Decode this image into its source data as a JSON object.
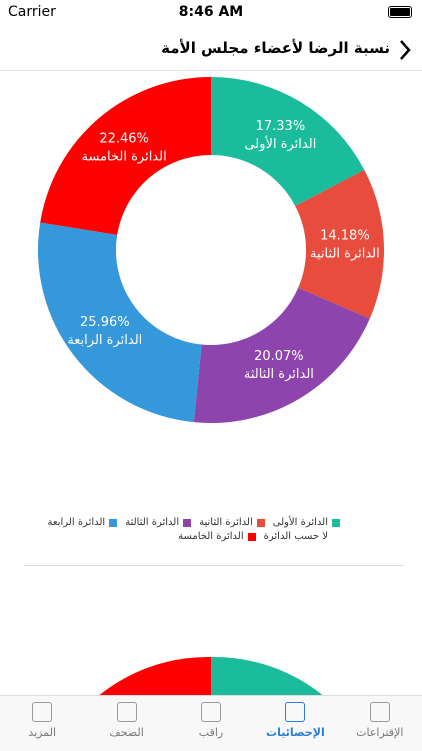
{
  "status_bar": {
    "carrier": "Carrier",
    "time": "8:46 AM"
  },
  "header": {
    "title": "نسبة الرضا لأعضاء مجلس الأمة"
  },
  "chart_data": {
    "type": "donut",
    "categories": [
      "الدائرة الأولى",
      "الدائرة الثانية",
      "الدائرة الثالثة",
      "الدائرة الرابعة",
      "لا حسب الدائرة",
      "الدائرة الخامسة"
    ],
    "values": [
      17.33,
      14.18,
      20.07,
      25.96,
      0,
      22.46
    ],
    "value_labels": [
      "17.33%",
      "14.18%",
      "20.07%",
      "25.96%",
      null,
      "22.46%"
    ],
    "colors": [
      "#1abc9c",
      "#e74c3c",
      "#8e44ad",
      "#3498db",
      "#ffffff",
      "#ff0000"
    ]
  },
  "tabs": [
    "الإقتراعات",
    "الإحصائيات",
    "راقب",
    "الصحف",
    "المزيد"
  ],
  "active_tab": 1
}
